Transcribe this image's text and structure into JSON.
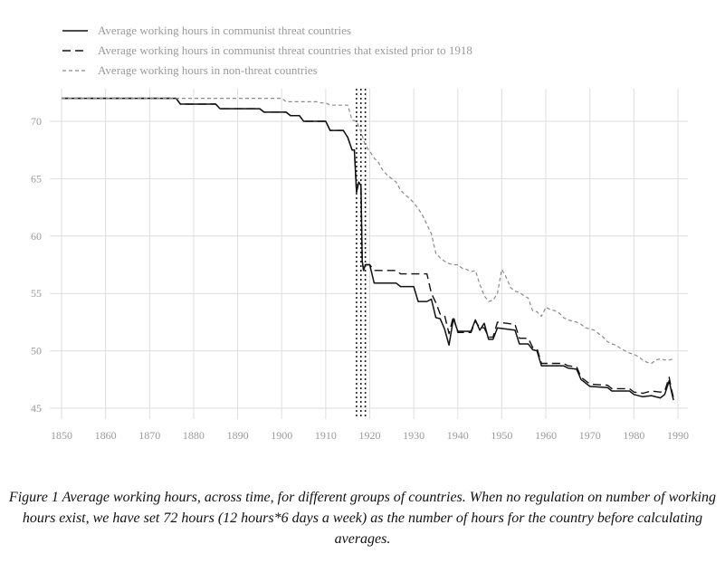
{
  "chart_data": {
    "type": "line",
    "title": "",
    "xlabel": "",
    "ylabel": "",
    "xlim": [
      1850,
      1990
    ],
    "ylim": [
      44,
      72.5
    ],
    "xticks": [
      "1850",
      "1860",
      "1870",
      "1880",
      "1890",
      "1900",
      "1910",
      "1920",
      "1930",
      "1940",
      "1950",
      "1960",
      "1970",
      "1980",
      "1990"
    ],
    "yticks": [
      "45",
      "50",
      "55",
      "60",
      "65",
      "70"
    ],
    "grid": true,
    "legend_position": "top-left",
    "vlines": [
      1917,
      1918,
      1919
    ],
    "series": [
      {
        "name": "Average working hours in communist threat countries",
        "style": "solid",
        "color": "#111111",
        "points": [
          [
            1850,
            72
          ],
          [
            1876,
            72
          ],
          [
            1877,
            71.5
          ],
          [
            1885,
            71.5
          ],
          [
            1886,
            71.1
          ],
          [
            1895,
            71.1
          ],
          [
            1896,
            70.8
          ],
          [
            1901,
            70.8
          ],
          [
            1902,
            70.5
          ],
          [
            1904,
            70.5
          ],
          [
            1905,
            70
          ],
          [
            1910,
            70
          ],
          [
            1911,
            69.2
          ],
          [
            1914,
            69.2
          ],
          [
            1915,
            68.6
          ],
          [
            1916,
            67.5
          ],
          [
            1916.5,
            67.5
          ],
          [
            1917,
            63.8
          ],
          [
            1917.5,
            64.7
          ],
          [
            1918,
            64.4
          ],
          [
            1918.3,
            57.8
          ],
          [
            1918.6,
            57
          ],
          [
            1919,
            57.5
          ],
          [
            1920,
            57.5
          ],
          [
            1921,
            55.9
          ],
          [
            1926,
            55.9
          ],
          [
            1927,
            55.6
          ],
          [
            1930,
            55.6
          ],
          [
            1931,
            54.3
          ],
          [
            1933,
            54.3
          ],
          [
            1934,
            54.5
          ],
          [
            1935,
            52.9
          ],
          [
            1936,
            52.8
          ],
          [
            1937,
            51.9
          ],
          [
            1938,
            50.5
          ],
          [
            1939,
            52.8
          ],
          [
            1940,
            51.7
          ],
          [
            1943,
            51.7
          ],
          [
            1944,
            52.7
          ],
          [
            1945,
            51.8
          ],
          [
            1946,
            52.4
          ],
          [
            1947,
            51
          ],
          [
            1948,
            51
          ],
          [
            1949,
            52
          ],
          [
            1953,
            51.8
          ],
          [
            1954,
            50.6
          ],
          [
            1956,
            50.6
          ],
          [
            1957,
            50.1
          ],
          [
            1958,
            50
          ],
          [
            1959,
            48.7
          ],
          [
            1964,
            48.7
          ],
          [
            1965,
            48.5
          ],
          [
            1967,
            48.4
          ],
          [
            1968,
            47.5
          ],
          [
            1970,
            46.9
          ],
          [
            1974,
            46.8
          ],
          [
            1975,
            46.5
          ],
          [
            1979,
            46.5
          ],
          [
            1980,
            46.2
          ],
          [
            1982,
            46
          ],
          [
            1984,
            46.1
          ],
          [
            1986,
            45.9
          ],
          [
            1987,
            46.2
          ],
          [
            1988,
            47.4
          ],
          [
            1988.5,
            46.5
          ],
          [
            1989,
            45.7
          ]
        ]
      },
      {
        "name": "Average working hours in communist threat countries that existed prior to 1918",
        "style": "dashed",
        "color": "#111111",
        "points": [
          [
            1850,
            72
          ],
          [
            1876,
            72
          ],
          [
            1877,
            71.5
          ],
          [
            1885,
            71.5
          ],
          [
            1886,
            71.1
          ],
          [
            1895,
            71.1
          ],
          [
            1896,
            70.8
          ],
          [
            1901,
            70.8
          ],
          [
            1902,
            70.5
          ],
          [
            1904,
            70.5
          ],
          [
            1905,
            70
          ],
          [
            1910,
            70
          ],
          [
            1911,
            69.2
          ],
          [
            1914,
            69.2
          ],
          [
            1915,
            68.6
          ],
          [
            1916,
            67.5
          ],
          [
            1916.5,
            67.5
          ],
          [
            1917,
            63.8
          ],
          [
            1917.5,
            64.7
          ],
          [
            1918,
            64.4
          ],
          [
            1918.3,
            57.8
          ],
          [
            1918.6,
            57
          ],
          [
            1919,
            57.5
          ],
          [
            1920,
            57.5
          ],
          [
            1921,
            57
          ],
          [
            1926,
            57
          ],
          [
            1927,
            56.7
          ],
          [
            1933,
            56.7
          ],
          [
            1934,
            55
          ],
          [
            1935,
            54.2
          ],
          [
            1936,
            53.2
          ],
          [
            1937,
            53.1
          ],
          [
            1938,
            51.5
          ],
          [
            1939,
            53
          ],
          [
            1940,
            51.6
          ],
          [
            1943,
            51.6
          ],
          [
            1944,
            52.6
          ],
          [
            1945,
            52
          ],
          [
            1946,
            52
          ],
          [
            1947,
            51.2
          ],
          [
            1948,
            51.2
          ],
          [
            1949,
            52.5
          ],
          [
            1953,
            52.3
          ],
          [
            1954,
            51.1
          ],
          [
            1956,
            51.1
          ],
          [
            1957,
            50.3
          ],
          [
            1958,
            50.2
          ],
          [
            1959,
            48.9
          ],
          [
            1964,
            48.9
          ],
          [
            1965,
            48.7
          ],
          [
            1967,
            48.6
          ],
          [
            1968,
            47.7
          ],
          [
            1970,
            47.1
          ],
          [
            1974,
            47
          ],
          [
            1975,
            46.7
          ],
          [
            1979,
            46.7
          ],
          [
            1980,
            46.4
          ],
          [
            1982,
            46.3
          ],
          [
            1984,
            46.5
          ],
          [
            1986,
            46.4
          ],
          [
            1987,
            46.5
          ],
          [
            1988,
            47.7
          ],
          [
            1988.5,
            46.7
          ],
          [
            1989,
            45.9
          ]
        ]
      },
      {
        "name": "Average working hours in non-threat countries",
        "style": "dotted",
        "color": "#8a8a8a",
        "points": [
          [
            1850,
            72
          ],
          [
            1900,
            72
          ],
          [
            1901,
            71.7
          ],
          [
            1908,
            71.7
          ],
          [
            1909,
            71.6
          ],
          [
            1910,
            71.6
          ],
          [
            1911,
            71.4
          ],
          [
            1915,
            71.4
          ],
          [
            1916,
            70.1
          ],
          [
            1917,
            70
          ],
          [
            1918,
            69.1
          ],
          [
            1919,
            67.9
          ],
          [
            1920,
            67.4
          ],
          [
            1921,
            66.8
          ],
          [
            1922,
            66.4
          ],
          [
            1923,
            65.7
          ],
          [
            1924,
            65.3
          ],
          [
            1925,
            65
          ],
          [
            1926,
            64.7
          ],
          [
            1927,
            64
          ],
          [
            1928,
            63.6
          ],
          [
            1929,
            63.3
          ],
          [
            1930,
            62.9
          ],
          [
            1931,
            62.4
          ],
          [
            1932,
            61.8
          ],
          [
            1933,
            61
          ],
          [
            1934,
            60.2
          ],
          [
            1935,
            58.5
          ],
          [
            1936,
            58.1
          ],
          [
            1937,
            57.8
          ],
          [
            1938,
            57.6
          ],
          [
            1939,
            57.5
          ],
          [
            1940,
            57.5
          ],
          [
            1941,
            57.2
          ],
          [
            1942,
            57.1
          ],
          [
            1943,
            56.9
          ],
          [
            1944,
            57
          ],
          [
            1945,
            55.8
          ],
          [
            1946,
            54.8
          ],
          [
            1947,
            54.3
          ],
          [
            1948,
            54.4
          ],
          [
            1949,
            55
          ],
          [
            1950,
            57.1
          ],
          [
            1951,
            56.4
          ],
          [
            1952,
            55.5
          ],
          [
            1953,
            55.2
          ],
          [
            1954,
            55.1
          ],
          [
            1955,
            54.8
          ],
          [
            1956,
            54.6
          ],
          [
            1957,
            53.5
          ],
          [
            1958,
            53.4
          ],
          [
            1959,
            53
          ],
          [
            1960,
            53.8
          ],
          [
            1961,
            53.6
          ],
          [
            1962,
            53.5
          ],
          [
            1963,
            53.3
          ],
          [
            1964,
            52.9
          ],
          [
            1965,
            52.7
          ],
          [
            1966,
            52.6
          ],
          [
            1967,
            52.5
          ],
          [
            1968,
            52.3
          ],
          [
            1969,
            52
          ],
          [
            1970,
            51.9
          ],
          [
            1971,
            51.8
          ],
          [
            1972,
            51.5
          ],
          [
            1973,
            51.2
          ],
          [
            1974,
            50.8
          ],
          [
            1975,
            50.6
          ],
          [
            1976,
            50.5
          ],
          [
            1977,
            50.2
          ],
          [
            1978,
            50
          ],
          [
            1979,
            49.8
          ],
          [
            1980,
            49.7
          ],
          [
            1981,
            49.5
          ],
          [
            1982,
            49.2
          ],
          [
            1983,
            49
          ],
          [
            1984,
            48.9
          ],
          [
            1985,
            49.2
          ],
          [
            1986,
            49.3
          ],
          [
            1987,
            49.2
          ],
          [
            1988,
            49.2
          ],
          [
            1989,
            49.3
          ]
        ]
      }
    ]
  },
  "caption": "Figure 1 Average working hours, across time, for different groups of countries. When no regulation on number of working hours exist, we have set 72 hours (12 hours*6 days a week) as the number of hours for the country before calculating averages."
}
